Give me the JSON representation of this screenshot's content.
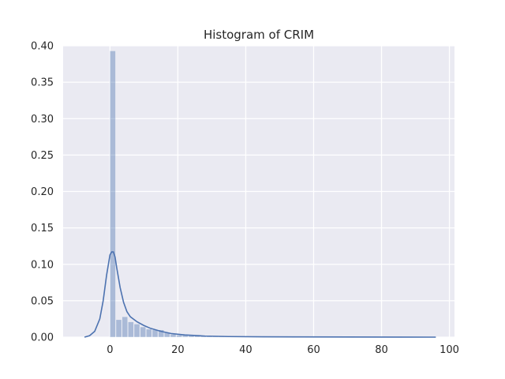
{
  "chart_data": {
    "type": "histogram",
    "title": "Histogram of CRIM",
    "xlabel": "",
    "ylabel": "",
    "xlim": [
      -13.8,
      101.5
    ],
    "ylim": [
      0,
      0.4
    ],
    "x_ticks": [
      0,
      20,
      40,
      60,
      80,
      100
    ],
    "x_tick_labels": [
      "0",
      "20",
      "40",
      "60",
      "80",
      "100"
    ],
    "y_ticks": [
      0.0,
      0.05,
      0.1,
      0.15,
      0.2,
      0.25,
      0.3,
      0.35,
      0.4
    ],
    "y_tick_labels": [
      "0.00",
      "0.05",
      "0.10",
      "0.15",
      "0.20",
      "0.25",
      "0.30",
      "0.35",
      "0.40"
    ],
    "grid": true,
    "colors": {
      "bar": "#4c72b0",
      "kde": "#4c72b0",
      "background": "#eaeaf2",
      "grid": "#ffffff"
    },
    "bin_width": 1.78,
    "bins_start": 0,
    "bar_values": [
      0.393,
      0.024,
      0.028,
      0.021,
      0.018,
      0.014,
      0.011,
      0.01,
      0.01,
      0.006,
      0.004,
      0.003,
      0.003,
      0.002,
      0.002,
      0.0015,
      0.0012,
      0.001,
      0.001,
      0.0008,
      0.0007,
      0.0006,
      0.0006,
      0.0005,
      0.0005,
      0.0004,
      0.0004,
      0.0003,
      0.0003,
      0.0003,
      0.0002,
      0.0002,
      0.0002,
      0.0002,
      0.0002,
      0.0002,
      0.0002,
      0.0002,
      0.0002,
      0.0002,
      0.0002,
      0.0002,
      0.0002,
      0.0002,
      0.0002,
      0.0002,
      0.0002,
      0.0002,
      0.0002,
      0.0002,
      0.0002,
      0.0002,
      0.0002,
      0.0002
    ],
    "kde": {
      "x": [
        -7.5,
        -6,
        -4.5,
        -3,
        -2,
        -1,
        0,
        0.5,
        1,
        1.5,
        2,
        3,
        4,
        5,
        6,
        8,
        10,
        12,
        15,
        18,
        22,
        28,
        35,
        45,
        55,
        70,
        85,
        96
      ],
      "y": [
        0.0,
        0.002,
        0.008,
        0.025,
        0.05,
        0.085,
        0.113,
        0.117,
        0.117,
        0.11,
        0.095,
        0.068,
        0.048,
        0.035,
        0.028,
        0.021,
        0.016,
        0.012,
        0.008,
        0.005,
        0.003,
        0.0015,
        0.0008,
        0.0005,
        0.0003,
        0.0002,
        0.0001,
        0.0
      ]
    }
  }
}
